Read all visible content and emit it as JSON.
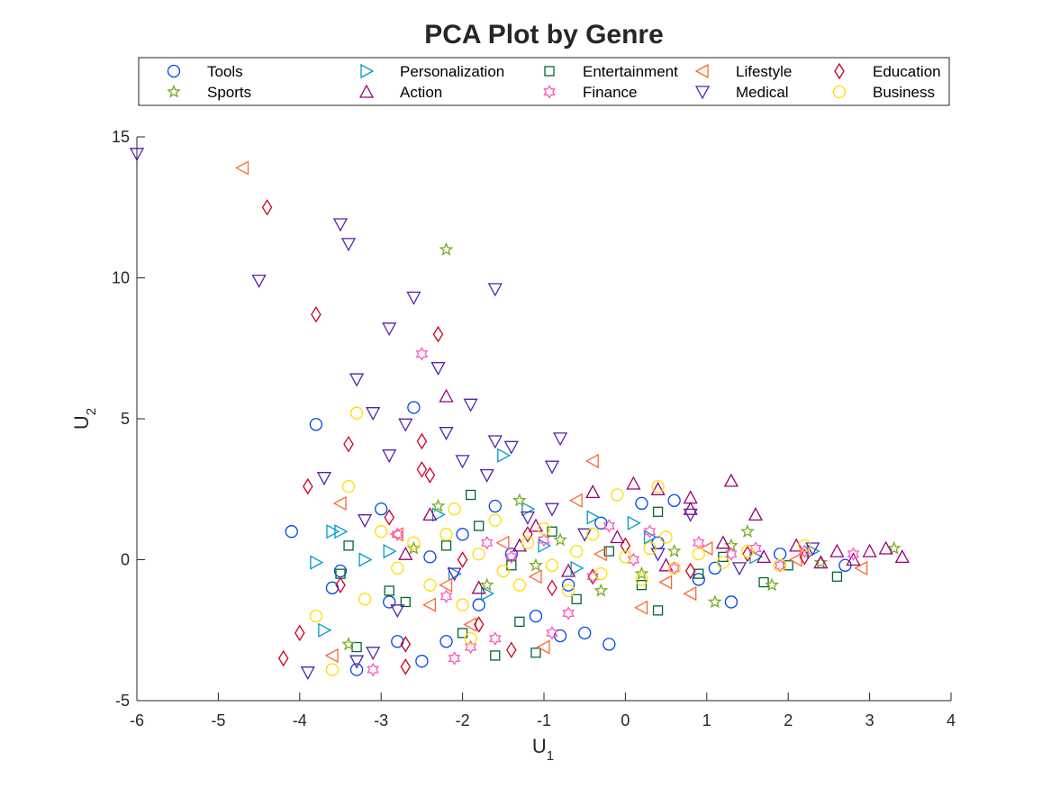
{
  "chart_data": {
    "type": "scatter",
    "title": "PCA Plot by Genre",
    "xlabel": {
      "main": "U",
      "sub": "1"
    },
    "ylabel": {
      "main": "U",
      "sub": "2"
    },
    "xlim": [
      -6,
      4
    ],
    "ylim": [
      -5,
      15
    ],
    "xticks": [
      "-6",
      "-5",
      "-4",
      "-3",
      "-2",
      "-1",
      "0",
      "1",
      "2",
      "3",
      "4"
    ],
    "yticks": [
      "-5",
      "0",
      "5",
      "10",
      "15"
    ],
    "legend_position": "top (outside plot), 5 columns",
    "series": [
      {
        "name": "Tools",
        "marker": "circle",
        "color": "#0044ee",
        "points": [
          [
            -4.1,
            1.0
          ],
          [
            -3.8,
            4.8
          ],
          [
            -2.6,
            5.4
          ],
          [
            -3.0,
            1.8
          ],
          [
            -3.3,
            -3.9
          ],
          [
            -2.8,
            -2.9
          ],
          [
            -2.2,
            -2.9
          ],
          [
            -0.8,
            -2.7
          ],
          [
            -0.5,
            -2.6
          ],
          [
            -0.2,
            -3.0
          ],
          [
            0.2,
            2.0
          ],
          [
            0.6,
            2.1
          ],
          [
            1.3,
            -1.5
          ],
          [
            -3.6,
            -1.0
          ],
          [
            -2.5,
            -3.6
          ],
          [
            -1.6,
            1.9
          ],
          [
            -1.1,
            -2.0
          ],
          [
            -0.3,
            1.3
          ],
          [
            -2.9,
            -1.5
          ],
          [
            -2.0,
            0.9
          ],
          [
            -1.4,
            0.2
          ],
          [
            -0.7,
            -0.9
          ],
          [
            0.4,
            0.6
          ],
          [
            1.1,
            -0.3
          ],
          [
            1.9,
            0.2
          ],
          [
            2.7,
            -0.2
          ],
          [
            -3.5,
            -0.4
          ],
          [
            -2.4,
            0.1
          ],
          [
            -1.8,
            -1.6
          ],
          [
            0.9,
            -0.7
          ]
        ]
      },
      {
        "name": "Personalization",
        "marker": "triangle-right",
        "color": "#0099cc",
        "points": [
          [
            -3.8,
            -0.1
          ],
          [
            -3.6,
            1.0
          ],
          [
            -3.5,
            1.0
          ],
          [
            -3.2,
            0.0
          ],
          [
            -1.5,
            3.7
          ],
          [
            -2.9,
            0.3
          ],
          [
            -2.3,
            1.6
          ],
          [
            -1.2,
            1.8
          ],
          [
            -0.4,
            1.5
          ],
          [
            0.1,
            1.3
          ],
          [
            -3.7,
            -2.5
          ],
          [
            -2.1,
            -0.5
          ],
          [
            -1.0,
            0.5
          ],
          [
            0.3,
            0.8
          ],
          [
            1.6,
            0.1
          ],
          [
            -1.7,
            -1.2
          ],
          [
            -0.6,
            -0.3
          ],
          [
            2.3,
            0.3
          ]
        ]
      },
      {
        "name": "Entertainment",
        "marker": "square",
        "color": "#006633",
        "points": [
          [
            -3.3,
            -3.1
          ],
          [
            -3.4,
            0.5
          ],
          [
            -1.9,
            2.3
          ],
          [
            -1.6,
            -3.4
          ],
          [
            -1.1,
            -3.3
          ],
          [
            0.4,
            -1.8
          ],
          [
            0.4,
            1.7
          ],
          [
            -3.5,
            -0.5
          ],
          [
            -2.7,
            -1.5
          ],
          [
            -2.0,
            -2.6
          ],
          [
            -1.3,
            -2.2
          ],
          [
            -0.6,
            -1.4
          ],
          [
            0.2,
            -0.9
          ],
          [
            0.9,
            -0.5
          ],
          [
            1.7,
            -0.8
          ],
          [
            2.6,
            -0.6
          ],
          [
            -2.2,
            0.5
          ],
          [
            -1.4,
            -0.2
          ],
          [
            -0.2,
            0.3
          ],
          [
            1.2,
            0.1
          ],
          [
            2.0,
            -0.2
          ],
          [
            -2.9,
            -1.1
          ],
          [
            -1.8,
            1.2
          ],
          [
            -0.9,
            1.0
          ]
        ]
      },
      {
        "name": "Lifestyle",
        "marker": "triangle-left",
        "color": "#ff6633",
        "points": [
          [
            -4.7,
            13.9
          ],
          [
            -0.4,
            3.5
          ],
          [
            -3.5,
            2.0
          ],
          [
            -0.6,
            2.1
          ],
          [
            -3.6,
            -3.4
          ],
          [
            -1.9,
            -2.3
          ],
          [
            -1.0,
            -3.1
          ],
          [
            -2.4,
            -1.6
          ],
          [
            0.2,
            -1.7
          ],
          [
            0.8,
            -1.2
          ],
          [
            2.9,
            -0.3
          ],
          [
            -2.8,
            0.9
          ],
          [
            -1.5,
            0.6
          ],
          [
            -0.3,
            0.2
          ],
          [
            1.0,
            0.4
          ],
          [
            2.1,
            0.0
          ],
          [
            -2.2,
            -0.9
          ],
          [
            -1.1,
            -0.6
          ],
          [
            0.5,
            -0.8
          ]
        ]
      },
      {
        "name": "Education",
        "marker": "diamond",
        "color": "#cc0022",
        "points": [
          [
            -4.4,
            12.5
          ],
          [
            -3.8,
            8.7
          ],
          [
            -2.3,
            8.0
          ],
          [
            -3.4,
            4.1
          ],
          [
            -2.5,
            4.2
          ],
          [
            -2.5,
            3.2
          ],
          [
            -2.4,
            3.0
          ],
          [
            -3.9,
            2.6
          ],
          [
            -4.0,
            -2.6
          ],
          [
            -4.2,
            -3.5
          ],
          [
            -1.4,
            -3.2
          ],
          [
            -2.7,
            -3.8
          ],
          [
            -2.7,
            -3.0
          ],
          [
            -3.5,
            -0.9
          ],
          [
            -2.9,
            1.5
          ],
          [
            -1.8,
            -2.3
          ],
          [
            -0.9,
            -1.0
          ],
          [
            0.0,
            0.5
          ],
          [
            0.8,
            -0.4
          ],
          [
            1.5,
            0.2
          ],
          [
            -2.0,
            0.0
          ],
          [
            -1.2,
            0.9
          ],
          [
            -0.4,
            -0.6
          ],
          [
            2.2,
            0.1
          ]
        ]
      },
      {
        "name": "Sports",
        "marker": "star",
        "color": "#77aa22",
        "points": [
          [
            -2.2,
            11.0
          ],
          [
            -3.4,
            -3.0
          ],
          [
            -2.3,
            1.9
          ],
          [
            -1.3,
            2.1
          ],
          [
            1.5,
            1.0
          ],
          [
            3.3,
            0.4
          ],
          [
            1.8,
            -0.9
          ],
          [
            1.1,
            -1.5
          ],
          [
            -0.3,
            -1.1
          ],
          [
            0.6,
            0.3
          ],
          [
            -1.7,
            -0.9
          ],
          [
            -0.8,
            0.7
          ],
          [
            2.4,
            -0.1
          ],
          [
            -2.6,
            0.4
          ],
          [
            -1.1,
            -0.2
          ],
          [
            0.2,
            -0.5
          ],
          [
            1.3,
            0.5
          ]
        ]
      },
      {
        "name": "Action",
        "marker": "triangle-up",
        "color": "#990077",
        "points": [
          [
            -2.2,
            5.8
          ],
          [
            0.1,
            2.7
          ],
          [
            0.4,
            2.5
          ],
          [
            1.3,
            2.8
          ],
          [
            0.8,
            2.2
          ],
          [
            0.8,
            1.8
          ],
          [
            1.6,
            1.6
          ],
          [
            -0.4,
            2.4
          ],
          [
            3.4,
            0.1
          ],
          [
            3.0,
            0.3
          ],
          [
            2.6,
            0.3
          ],
          [
            2.1,
            0.5
          ],
          [
            1.7,
            0.1
          ],
          [
            1.2,
            0.6
          ],
          [
            -1.1,
            1.2
          ],
          [
            -2.4,
            1.6
          ],
          [
            -0.1,
            0.8
          ],
          [
            -1.8,
            -1.0
          ],
          [
            -0.7,
            -0.4
          ],
          [
            0.5,
            -0.2
          ],
          [
            2.4,
            -0.1
          ],
          [
            -2.7,
            0.2
          ],
          [
            -1.3,
            0.5
          ],
          [
            3.2,
            0.4
          ],
          [
            2.8,
            0.0
          ]
        ]
      },
      {
        "name": "Finance",
        "marker": "hexagram",
        "color": "#ff55bb",
        "points": [
          [
            -2.5,
            7.3
          ],
          [
            -3.1,
            -3.9
          ],
          [
            -2.1,
            -3.5
          ],
          [
            -1.9,
            -3.1
          ],
          [
            -0.9,
            -2.6
          ],
          [
            -1.6,
            -2.8
          ],
          [
            -0.7,
            -1.9
          ],
          [
            -0.2,
            1.2
          ],
          [
            0.3,
            1.0
          ],
          [
            0.9,
            0.6
          ],
          [
            1.6,
            0.4
          ],
          [
            2.2,
            0.3
          ],
          [
            2.8,
            0.2
          ],
          [
            -2.8,
            0.9
          ],
          [
            -1.4,
            0.1
          ],
          [
            -0.4,
            -0.6
          ],
          [
            0.6,
            -0.3
          ],
          [
            1.3,
            0.2
          ],
          [
            -2.2,
            -1.3
          ],
          [
            -1.0,
            0.7
          ],
          [
            0.1,
            0.0
          ],
          [
            1.9,
            -0.2
          ],
          [
            -1.7,
            0.6
          ]
        ]
      },
      {
        "name": "Medical",
        "marker": "triangle-down",
        "color": "#5522aa",
        "points": [
          [
            -6.0,
            14.4
          ],
          [
            -3.5,
            11.9
          ],
          [
            -3.4,
            11.2
          ],
          [
            -4.5,
            9.9
          ],
          [
            -2.6,
            9.3
          ],
          [
            -1.6,
            9.6
          ],
          [
            -2.9,
            8.2
          ],
          [
            -3.3,
            6.4
          ],
          [
            -2.3,
            6.8
          ],
          [
            -1.9,
            5.5
          ],
          [
            -3.1,
            5.2
          ],
          [
            -2.7,
            4.8
          ],
          [
            -2.2,
            4.5
          ],
          [
            -1.6,
            4.2
          ],
          [
            -1.4,
            4.0
          ],
          [
            -0.8,
            4.3
          ],
          [
            -2.9,
            3.7
          ],
          [
            -2.0,
            3.5
          ],
          [
            -0.9,
            3.3
          ],
          [
            -3.7,
            2.9
          ],
          [
            -1.7,
            3.0
          ],
          [
            -3.9,
            -4.0
          ],
          [
            -3.3,
            -3.6
          ],
          [
            -3.1,
            -3.3
          ],
          [
            -2.8,
            -1.8
          ],
          [
            0.8,
            1.6
          ],
          [
            -1.2,
            1.5
          ],
          [
            -2.1,
            -0.5
          ],
          [
            -0.5,
            0.9
          ],
          [
            0.4,
            0.2
          ],
          [
            1.4,
            -0.3
          ],
          [
            2.3,
            0.4
          ],
          [
            -0.9,
            1.8
          ],
          [
            -3.2,
            1.4
          ]
        ]
      },
      {
        "name": "Business",
        "marker": "circle",
        "color": "#ffdd00",
        "points": [
          [
            -3.3,
            5.2
          ],
          [
            -3.4,
            2.6
          ],
          [
            -0.1,
            2.3
          ],
          [
            0.4,
            2.6
          ],
          [
            -3.8,
            -2.0
          ],
          [
            -3.6,
            -3.9
          ],
          [
            -1.9,
            -2.8
          ],
          [
            -3.2,
            -1.4
          ],
          [
            -3.0,
            1.0
          ],
          [
            -2.6,
            0.6
          ],
          [
            -2.2,
            0.9
          ],
          [
            -1.8,
            0.2
          ],
          [
            -1.5,
            -0.4
          ],
          [
            -1.2,
            0.6
          ],
          [
            -0.9,
            -0.2
          ],
          [
            -0.6,
            0.3
          ],
          [
            -0.3,
            -0.5
          ],
          [
            0.0,
            0.1
          ],
          [
            0.3,
            0.4
          ],
          [
            0.6,
            -0.3
          ],
          [
            0.9,
            0.2
          ],
          [
            1.2,
            -0.1
          ],
          [
            1.5,
            0.3
          ],
          [
            1.9,
            -0.2
          ],
          [
            2.2,
            0.5
          ],
          [
            -2.4,
            -0.9
          ],
          [
            -2.0,
            -1.6
          ],
          [
            -1.6,
            1.4
          ],
          [
            -1.0,
            1.1
          ],
          [
            -0.7,
            -1.1
          ],
          [
            -0.4,
            0.9
          ],
          [
            0.2,
            -0.7
          ],
          [
            -2.8,
            -0.3
          ],
          [
            -1.3,
            -0.9
          ],
          [
            0.5,
            0.8
          ],
          [
            -2.1,
            1.8
          ]
        ]
      }
    ]
  }
}
